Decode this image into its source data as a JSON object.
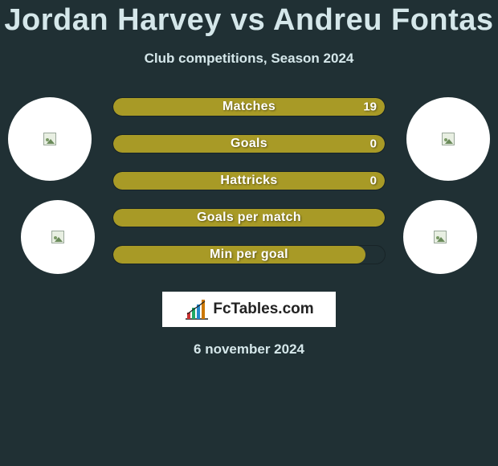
{
  "background_color": "#203034",
  "text_color": "#d5e7ea",
  "title": {
    "player1": "Jordan Harvey",
    "vs": "vs",
    "player2": "Andreu Fontas",
    "fontsize": 38,
    "color": "#d5e7ea"
  },
  "subtitle": "Club competitions, Season 2024",
  "subtitle_fontsize": 17,
  "avatars": {
    "bg_color": "#ffffff",
    "placeholder_border": "#9aa89a",
    "placeholder_fill": "#e8efe2"
  },
  "bars": {
    "track_color": "#203034",
    "fill_color": "#a89a26",
    "border_color": "rgba(0,0,0,0.25)",
    "height": 24,
    "gap": 22,
    "border_radius": 12,
    "label_fontsize": 16,
    "value_fontsize": 15,
    "text_color": "#ffffff",
    "rows": [
      {
        "label": "Matches",
        "value": "19",
        "fill_pct": 100
      },
      {
        "label": "Goals",
        "value": "0",
        "fill_pct": 100
      },
      {
        "label": "Hattricks",
        "value": "0",
        "fill_pct": 100
      },
      {
        "label": "Goals per match",
        "value": "",
        "fill_pct": 100
      },
      {
        "label": "Min per goal",
        "value": "",
        "fill_pct": 93
      }
    ]
  },
  "logo": {
    "text": "FcTables.com",
    "bg_color": "#ffffff",
    "text_color": "#222222",
    "fontsize": 19
  },
  "date": "6 november 2024",
  "date_fontsize": 17
}
